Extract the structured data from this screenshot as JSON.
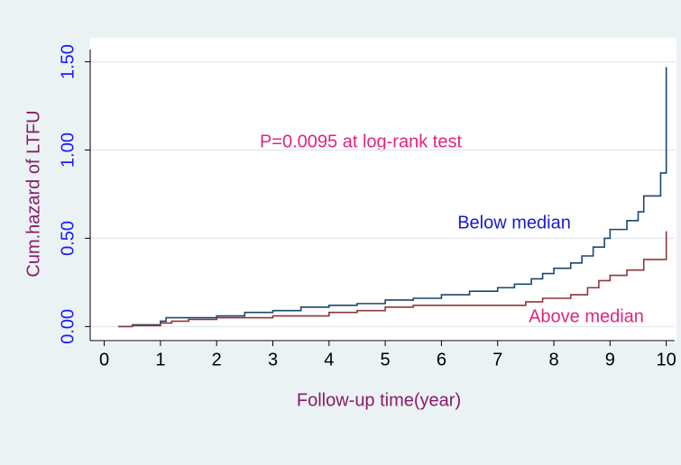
{
  "chart_data": {
    "type": "line",
    "step": true,
    "xlabel": "Follow-up time(year)",
    "ylabel": "Cum.hazard of LTFU",
    "xlim": [
      -0.25,
      10.15
    ],
    "ylim": [
      -0.08,
      1.6
    ],
    "xticks": [
      0,
      1,
      2,
      3,
      4,
      5,
      6,
      7,
      8,
      9,
      10
    ],
    "yticks": [
      {
        "value": 0,
        "label": "0.00"
      },
      {
        "value": 0.5,
        "label": "0.50"
      },
      {
        "value": 1,
        "label": "1.00"
      },
      {
        "value": 1.5,
        "label": "1.50"
      }
    ],
    "grid": true,
    "annotations": [
      "P=0.0095 at log-rank test"
    ],
    "series": [
      {
        "name": "Below median",
        "color": "#1a476f",
        "x": [
          0.25,
          0.5,
          1.0,
          1.1,
          2.0,
          2.5,
          3.0,
          3.5,
          4.0,
          4.5,
          5.0,
          5.5,
          6.0,
          6.5,
          7.0,
          7.3,
          7.6,
          7.8,
          8.0,
          8.3,
          8.5,
          8.7,
          8.9,
          9.0,
          9.3,
          9.5,
          9.6,
          9.9,
          10.0
        ],
        "values": [
          0.0,
          0.01,
          0.03,
          0.05,
          0.06,
          0.08,
          0.09,
          0.11,
          0.12,
          0.13,
          0.15,
          0.16,
          0.18,
          0.2,
          0.22,
          0.24,
          0.27,
          0.3,
          0.33,
          0.36,
          0.4,
          0.45,
          0.5,
          0.55,
          0.6,
          0.65,
          0.74,
          0.87,
          1.47
        ]
      },
      {
        "name": "Above median",
        "color": "#90353b",
        "x": [
          0.25,
          0.5,
          1.0,
          1.2,
          1.5,
          2.0,
          3.0,
          4.0,
          4.5,
          5.0,
          5.5,
          7.0,
          7.5,
          7.8,
          8.3,
          8.6,
          8.8,
          9.0,
          9.3,
          9.6,
          10.0
        ],
        "values": [
          0.0,
          0.005,
          0.02,
          0.03,
          0.04,
          0.05,
          0.06,
          0.08,
          0.09,
          0.11,
          0.12,
          0.12,
          0.14,
          0.16,
          0.18,
          0.22,
          0.26,
          0.29,
          0.32,
          0.38,
          0.54
        ]
      }
    ]
  }
}
